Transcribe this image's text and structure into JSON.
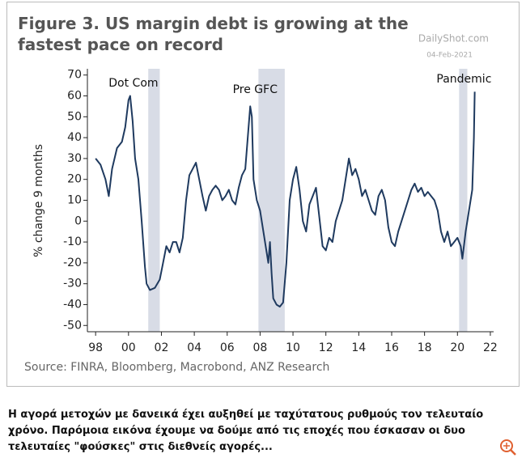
{
  "chart_data": {
    "type": "line",
    "title": "Figure 3. US margin debt is growing at the fastest pace on record",
    "watermark": "DailyShot.com",
    "date": "04-Feb-2021",
    "y_label": "% change 9 months",
    "source": "Source: FINRA, Bloomberg, Macrobond, ANZ Research",
    "annotations": [
      {
        "text": "Dot Com",
        "x": 2000.3,
        "y": 66
      },
      {
        "text": "Pre GFC",
        "x": 2007.7,
        "y": 63
      },
      {
        "text": "Pandemic",
        "x": 2020.4,
        "y": 68
      }
    ],
    "shaded": [
      [
        2001.2,
        2001.9
      ],
      [
        2007.9,
        2009.5
      ],
      [
        2020.1,
        2020.6
      ]
    ],
    "xlim": [
      1997.5,
      2022.2
    ],
    "ylim": [
      -53,
      73
    ],
    "xticks": [
      {
        "value": 1998,
        "label": "98"
      },
      {
        "value": 2000,
        "label": "00"
      },
      {
        "value": 2002,
        "label": "02"
      },
      {
        "value": 2004,
        "label": "04"
      },
      {
        "value": 2006,
        "label": "06"
      },
      {
        "value": 2008,
        "label": "08"
      },
      {
        "value": 2010,
        "label": "10"
      },
      {
        "value": 2012,
        "label": "12"
      },
      {
        "value": 2014,
        "label": "14"
      },
      {
        "value": 2016,
        "label": "16"
      },
      {
        "value": 2018,
        "label": "18"
      },
      {
        "value": 2020,
        "label": "20"
      },
      {
        "value": 2022,
        "label": "22"
      }
    ],
    "yticks": [
      -50,
      -40,
      -30,
      -20,
      -10,
      0,
      10,
      20,
      30,
      40,
      50,
      60,
      70
    ],
    "series": [
      {
        "color": "#1f3a5f",
        "x": [
          1998.0,
          1998.3,
          1998.6,
          1998.8,
          1999.0,
          1999.3,
          1999.6,
          1999.8,
          2000.0,
          2000.1,
          2000.25,
          2000.4,
          2000.6,
          2000.8,
          2001.0,
          2001.1,
          2001.3,
          2001.6,
          2001.9,
          2002.1,
          2002.3,
          2002.5,
          2002.7,
          2002.9,
          2003.1,
          2003.3,
          2003.5,
          2003.7,
          2003.9,
          2004.1,
          2004.3,
          2004.5,
          2004.7,
          2004.9,
          2005.1,
          2005.3,
          2005.5,
          2005.7,
          2005.9,
          2006.1,
          2006.3,
          2006.5,
          2006.7,
          2006.9,
          2007.1,
          2007.3,
          2007.4,
          2007.5,
          2007.6,
          2007.8,
          2008.0,
          2008.2,
          2008.4,
          2008.5,
          2008.6,
          2008.7,
          2008.8,
          2009.0,
          2009.2,
          2009.4,
          2009.6,
          2009.8,
          2010.0,
          2010.2,
          2010.4,
          2010.6,
          2010.8,
          2011.0,
          2011.2,
          2011.4,
          2011.6,
          2011.8,
          2012.0,
          2012.2,
          2012.4,
          2012.6,
          2012.8,
          2013.0,
          2013.2,
          2013.4,
          2013.6,
          2013.8,
          2014.0,
          2014.2,
          2014.4,
          2014.6,
          2014.8,
          2015.0,
          2015.2,
          2015.4,
          2015.6,
          2015.8,
          2016.0,
          2016.2,
          2016.4,
          2016.6,
          2016.8,
          2017.0,
          2017.2,
          2017.4,
          2017.6,
          2017.8,
          2018.0,
          2018.2,
          2018.4,
          2018.6,
          2018.8,
          2019.0,
          2019.2,
          2019.4,
          2019.6,
          2019.8,
          2020.0,
          2020.2,
          2020.3,
          2020.5,
          2020.7,
          2020.9,
          2021.0,
          2021.05
        ],
        "values": [
          30,
          27,
          20,
          12,
          25,
          35,
          38,
          45,
          58,
          60,
          48,
          30,
          20,
          0,
          -22,
          -30,
          -33,
          -32,
          -28,
          -20,
          -12,
          -15,
          -10,
          -10,
          -15,
          -8,
          10,
          22,
          25,
          28,
          20,
          12,
          5,
          12,
          15,
          17,
          15,
          10,
          12,
          15,
          10,
          8,
          16,
          22,
          25,
          45,
          55,
          50,
          20,
          10,
          5,
          -5,
          -15,
          -20,
          -10,
          -25,
          -37,
          -40,
          -41,
          -39,
          -20,
          10,
          20,
          26,
          15,
          0,
          -5,
          8,
          12,
          16,
          2,
          -12,
          -14,
          -8,
          -10,
          0,
          5,
          10,
          20,
          30,
          22,
          25,
          20,
          12,
          15,
          10,
          5,
          3,
          12,
          15,
          10,
          -3,
          -10,
          -12,
          -5,
          0,
          5,
          10,
          15,
          18,
          14,
          16,
          12,
          14,
          12,
          10,
          5,
          -5,
          -10,
          -5,
          -12,
          -10,
          -8,
          -12,
          -18,
          -5,
          5,
          15,
          40,
          62
        ]
      }
    ]
  },
  "caption": "Η αγορά μετοχών με δανεικά έχει αυξηθεί με ταχύτατους ρυθμούς τον τελευταίο χρόνο. Παρόμοια εικόνα έχουμε να δούμε από τις εποχές που έσκασαν οι δυο τελευταίες \"φούσκες\" στις διεθνείς αγορές..."
}
